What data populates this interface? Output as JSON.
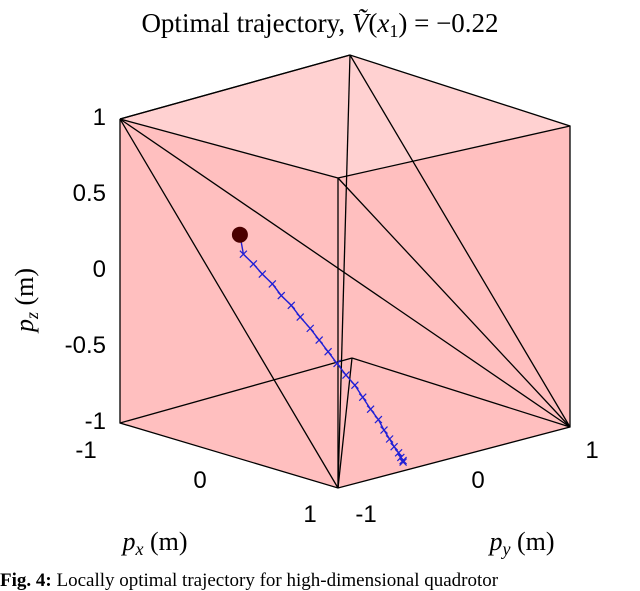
{
  "chart_data": {
    "type": "line",
    "projection": "3d",
    "title": "Optimal trajectory, Ṽ(x₁) = −0.22",
    "xlabel": "p_x (m)",
    "ylabel": "p_y (m)",
    "zlabel": "p_z (m)",
    "xlim": [
      -1,
      1
    ],
    "ylim": [
      -1,
      1
    ],
    "zlim": [
      -1,
      1
    ],
    "x_ticks": [
      "-1",
      "0",
      "1"
    ],
    "y_ticks": [
      "-1",
      "0",
      "1"
    ],
    "z_ticks": [
      "-1",
      "-0.5",
      "0",
      "0.5",
      "1"
    ],
    "grid": false,
    "region_color": "#ff8b8b",
    "trajectory_color": "#1f1fd6",
    "start_marker_color": "#4a0000",
    "start_point": {
      "x": 0.9,
      "y": 0.0,
      "z": 0.82
    },
    "series": [
      {
        "marker": "x",
        "points": [
          {
            "x": 0.9,
            "y": 0.03,
            "z": 0.7
          },
          {
            "x": 0.84,
            "y": 0.06,
            "z": 0.63
          },
          {
            "x": 0.79,
            "y": 0.09,
            "z": 0.56
          },
          {
            "x": 0.73,
            "y": 0.12,
            "z": 0.49
          },
          {
            "x": 0.68,
            "y": 0.15,
            "z": 0.41
          },
          {
            "x": 0.62,
            "y": 0.18,
            "z": 0.34
          },
          {
            "x": 0.57,
            "y": 0.21,
            "z": 0.26
          },
          {
            "x": 0.51,
            "y": 0.24,
            "z": 0.18
          },
          {
            "x": 0.46,
            "y": 0.27,
            "z": 0.1
          },
          {
            "x": 0.41,
            "y": 0.3,
            "z": 0.02
          },
          {
            "x": 0.36,
            "y": 0.33,
            "z": -0.06
          },
          {
            "x": 0.31,
            "y": 0.36,
            "z": -0.14
          },
          {
            "x": 0.26,
            "y": 0.39,
            "z": -0.21
          },
          {
            "x": 0.22,
            "y": 0.42,
            "z": -0.29
          },
          {
            "x": 0.18,
            "y": 0.45,
            "z": -0.37
          },
          {
            "x": 0.14,
            "y": 0.48,
            "z": -0.44
          },
          {
            "x": 0.11,
            "y": 0.5,
            "z": -0.51
          },
          {
            "x": 0.08,
            "y": 0.52,
            "z": -0.57
          },
          {
            "x": 0.06,
            "y": 0.54,
            "z": -0.62
          },
          {
            "x": 0.04,
            "y": 0.56,
            "z": -0.66
          },
          {
            "x": 0.03,
            "y": 0.57,
            "z": -0.69
          },
          {
            "x": 0.02,
            "y": 0.58,
            "z": -0.71
          },
          {
            "x": 0.02,
            "y": 0.58,
            "z": -0.72
          }
        ]
      }
    ]
  },
  "caption": {
    "label": "Fig. 4:",
    "text": "Locally optimal trajectory for high-dimensional quadrotor"
  }
}
